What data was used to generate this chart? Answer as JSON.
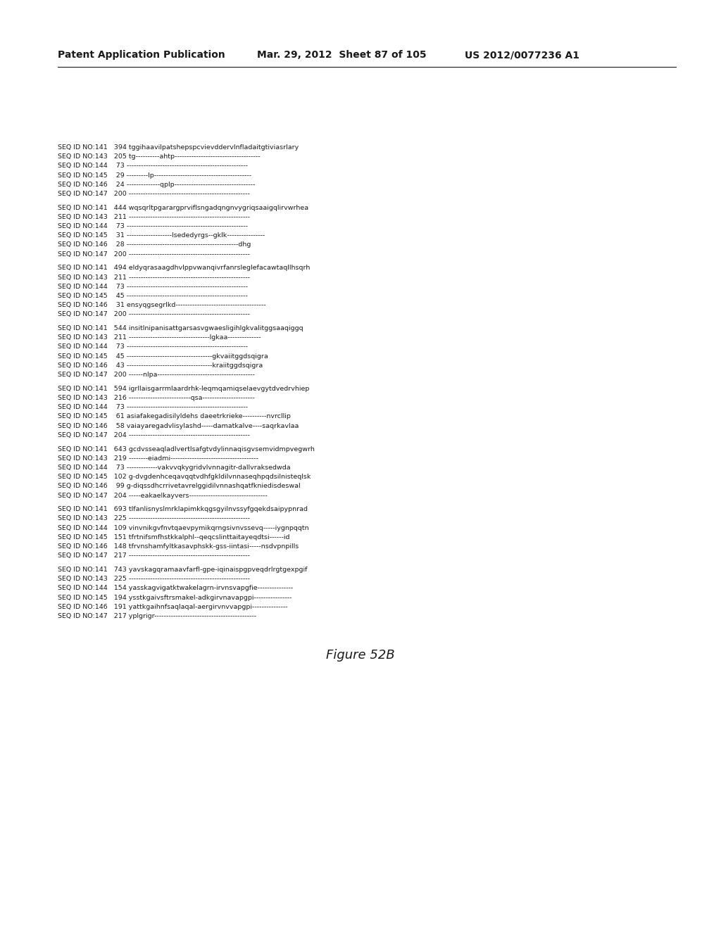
{
  "header_left": "Patent Application Publication",
  "header_mid": "Mar. 29, 2012  Sheet 87 of 105",
  "header_right": "US 2012/0077236 A1",
  "figure_label": "Figure 52B",
  "background_color": "#ffffff",
  "text_color": "#1a1a1a",
  "sequences": [
    "SEQ ID NO:141   394 tggihaavilpatshepspcvievddervlnfladaitgtiviasrlary",
    "SEQ ID NO:143   205 tg----------ahtp------------------------------------",
    "SEQ ID NO:144    73 ---------------------------------------------------",
    "SEQ ID NO:145    29 ---------lp-----------------------------------------",
    "SEQ ID NO:146    24 --------------qplp----------------------------------",
    "SEQ ID NO:147   200 ---------------------------------------------------",
    "",
    "SEQ ID NO:141   444 wqsqrltpgarargprviflsngadqngnvygriqsaaigqlirvwrhea",
    "SEQ ID NO:143   211 ---------------------------------------------------",
    "SEQ ID NO:144    73 ---------------------------------------------------",
    "SEQ ID NO:145    31 -------------------lsededyrgs--gklk----------------",
    "SEQ ID NO:146    28 -----------------------------------------------dhg",
    "SEQ ID NO:147   200 ---------------------------------------------------",
    "",
    "SEQ ID NO:141   494 eldyqrasaagdhvlppvwanqivrfanrsleglefacawtaqllhsqrh",
    "SEQ ID NO:143   211 ---------------------------------------------------",
    "SEQ ID NO:144    73 ---------------------------------------------------",
    "SEQ ID NO:145    45 ---------------------------------------------------",
    "SEQ ID NO:146    31 ensyqgsegrlkd--------------------------------------",
    "SEQ ID NO:147   200 ---------------------------------------------------",
    "",
    "SEQ ID NO:141   544 insitlnipanisattgarsasvgwaesligihlgkvalitggsaaqiggq",
    "SEQ ID NO:143   211 ----------------------------------lgkaa--------------",
    "SEQ ID NO:144    73 ---------------------------------------------------",
    "SEQ ID NO:145    45 ------------------------------------gkvaiitggdsqigra",
    "SEQ ID NO:146    43 ------------------------------------kraiitggdsqigra",
    "SEQ ID NO:147   200 ------nlpa-----------------------------------------",
    "",
    "SEQ ID NO:141   594 igrllaisgarrmlaardrhk-leqmqamiqselaevgytdvedrvhiep",
    "SEQ ID NO:143   216 --------------------------qsa----------------------",
    "SEQ ID NO:144    73 ---------------------------------------------------",
    "SEQ ID NO:145    61 asiafakegadisilyldehs daeetrkrieke----------nvrcllip",
    "SEQ ID NO:146    58 vaiayaregadvlisylashd-----damatkalve----saqrkavlaa",
    "SEQ ID NO:147   204 ---------------------------------------------------",
    "",
    "SEQ ID NO:141   643 gcdvsseaqladlvertlsafgtvdylinnaqisgvsemvidmpvegwrh",
    "SEQ ID NO:143   219 --------eiadmi-------------------------------------",
    "SEQ ID NO:144    73 -------------vakvvqkygridvlvnnagitr-dallvraksedwda",
    "SEQ ID NO:145   102 g-dvgdenhceqavqqtvdhfgkldilvnnaseqhpqdsilnisteqlsk",
    "SEQ ID NO:146    99 g-diqssdhcrrivetavrelggidilvnnashqatfkniedisdeswal",
    "SEQ ID NO:147   204 -----eakaelkayvers---------------------------------",
    "",
    "SEQ ID NO:141   693 tlfanlisnyslmrklapimkkqgsgyilnvssyfgqekdsaipypnrad",
    "SEQ ID NO:143   225 ---------------------------------------------------",
    "SEQ ID NO:144   109 vinvnikgvfnvtqaevpymikqrngsivnvssevq-----iygnpqqtn",
    "SEQ ID NO:145   151 tfrtnifsmfhstkkalphl--qeqcslinttaitayeqdtsi------id",
    "SEQ ID NO:146   148 tfrvnshamfyltkasavphskk-gss-iintasi-----nsdvpnpills",
    "SEQ ID NO:147   217 ---------------------------------------------------",
    "",
    "SEQ ID NO:141   743 yavskagqramaavfarfl-gpe-iqinaispgpveqdrlrgtgexpgif",
    "SEQ ID NO:143   225 ---------------------------------------------------",
    "SEQ ID NO:144   154 yasskagvigatktwakelagrn-irvnsvapgfie---------------",
    "SEQ ID NO:145   194 ysstkgaivsftrsmakel-adkgirvnavapgpi----------------",
    "SEQ ID NO:146   191 yattkgaihnfsaqlaqal-aergirvnvvapgpi---------------",
    "SEQ ID NO:147   217 yplgrigr-------------------------------------------"
  ]
}
